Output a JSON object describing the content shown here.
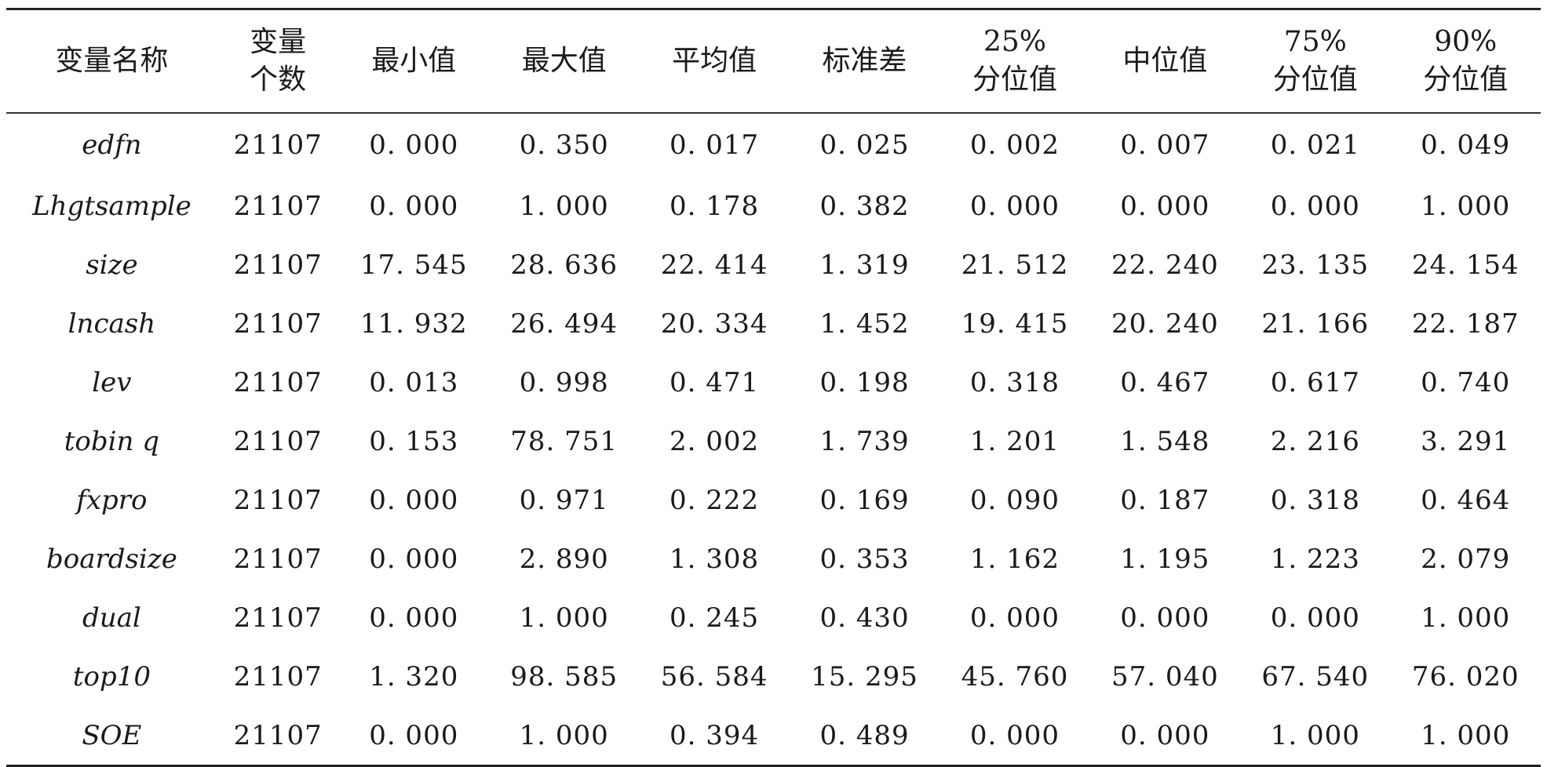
{
  "table": {
    "headers": [
      [
        "变量名称"
      ],
      [
        "变量",
        "个数"
      ],
      [
        "最小值"
      ],
      [
        "最大值"
      ],
      [
        "平均值"
      ],
      [
        "标准差"
      ],
      [
        "25%",
        "分位值"
      ],
      [
        "中位值"
      ],
      [
        "75%",
        "分位值"
      ],
      [
        "90%",
        "分位值"
      ]
    ],
    "rows": [
      [
        "edfn",
        "21107",
        "0. 000",
        "0. 350",
        "0. 017",
        "0. 025",
        "0. 002",
        "0. 007",
        "0. 021",
        "0. 049"
      ],
      [
        "Lhgtsample",
        "21107",
        "0. 000",
        "1. 000",
        "0. 178",
        "0. 382",
        "0. 000",
        "0. 000",
        "0. 000",
        "1. 000"
      ],
      [
        "size",
        "21107",
        "17. 545",
        "28. 636",
        "22. 414",
        "1. 319",
        "21. 512",
        "22. 240",
        "23. 135",
        "24. 154"
      ],
      [
        "lncash",
        "21107",
        "11. 932",
        "26. 494",
        "20. 334",
        "1. 452",
        "19. 415",
        "20. 240",
        "21. 166",
        "22. 187"
      ],
      [
        "lev",
        "21107",
        "0. 013",
        "0. 998",
        "0. 471",
        "0. 198",
        "0. 318",
        "0. 467",
        "0. 617",
        "0. 740"
      ],
      [
        "tobin q",
        "21107",
        "0. 153",
        "78. 751",
        "2. 002",
        "1. 739",
        "1. 201",
        "1. 548",
        "2. 216",
        "3. 291"
      ],
      [
        "fxpro",
        "21107",
        "0. 000",
        "0. 971",
        "0. 222",
        "0. 169",
        "0. 090",
        "0. 187",
        "0. 318",
        "0. 464"
      ],
      [
        "boardsize",
        "21107",
        "0. 000",
        "2. 890",
        "1. 308",
        "0. 353",
        "1. 162",
        "1. 195",
        "1. 223",
        "2. 079"
      ],
      [
        "dual",
        "21107",
        "0. 000",
        "1. 000",
        "0. 245",
        "0. 430",
        "0. 000",
        "0. 000",
        "0. 000",
        "1. 000"
      ],
      [
        "top10",
        "21107",
        "1. 320",
        "98. 585",
        "56. 584",
        "15. 295",
        "45. 760",
        "57. 040",
        "67. 540",
        "76. 020"
      ],
      [
        "SOE",
        "21107",
        "0. 000",
        "1. 000",
        "0. 394",
        "0. 489",
        "0. 000",
        "0. 000",
        "1. 000",
        "1. 000"
      ]
    ]
  }
}
